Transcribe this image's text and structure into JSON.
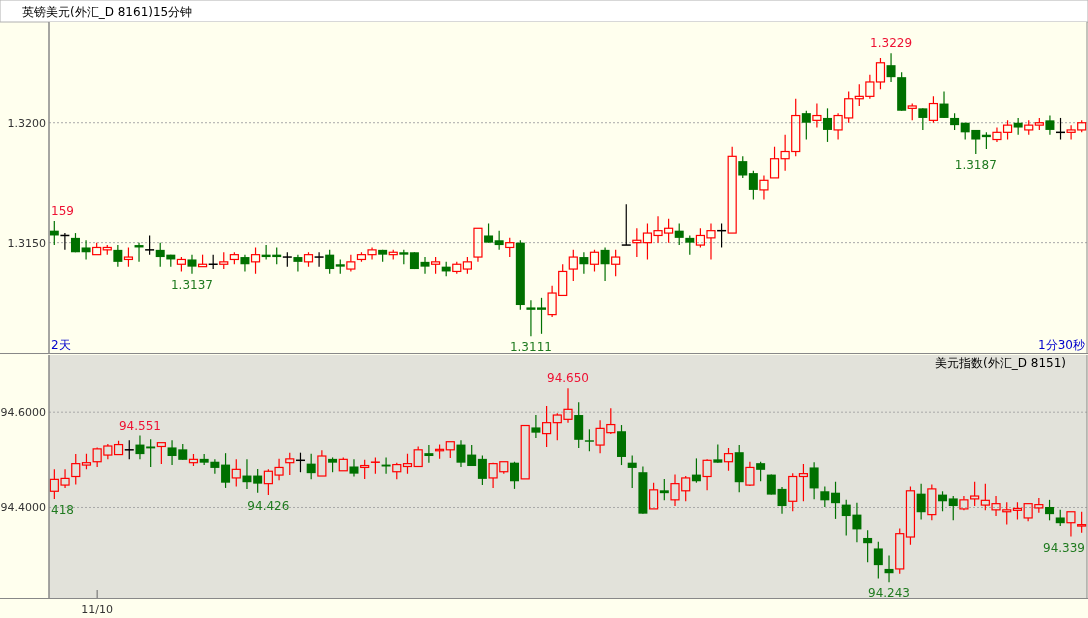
{
  "chart_data": [
    {
      "type": "candlestick",
      "title": "英镑美元(外汇_D 8161)15分钟",
      "categories": [
        null,
        null,
        null,
        null,
        null,
        null,
        null,
        null,
        null,
        null,
        null,
        null,
        null,
        null,
        null,
        null,
        null,
        null,
        null,
        null,
        null,
        null,
        null,
        null,
        null,
        null,
        null,
        null,
        null,
        null,
        null,
        null,
        null,
        null,
        null,
        null,
        null,
        null,
        null,
        null,
        null,
        null,
        null,
        null,
        null,
        null,
        null,
        null,
        null,
        null,
        null,
        null,
        null,
        null,
        null,
        null,
        null,
        null,
        null,
        null,
        null,
        null,
        null,
        null,
        null,
        null,
        null,
        null,
        null,
        null,
        null,
        null,
        null,
        null,
        null,
        null,
        null,
        null,
        null,
        null,
        null,
        null,
        null,
        null,
        null,
        null,
        null,
        null,
        null,
        null,
        null,
        null,
        null,
        null,
        null,
        null,
        null,
        null
      ],
      "ohlc": [
        [
          1.3155,
          1.3159,
          1.3149,
          1.3153
        ],
        [
          1.3153,
          1.3154,
          1.3147,
          1.3153
        ],
        [
          1.3152,
          1.3154,
          1.3146,
          1.3146
        ],
        [
          1.3148,
          1.3151,
          1.3143,
          1.3146
        ],
        [
          1.3145,
          1.315,
          1.3145,
          1.3148
        ],
        [
          1.3147,
          1.3149,
          1.3145,
          1.3148
        ],
        [
          1.3147,
          1.3149,
          1.314,
          1.3142
        ],
        [
          1.3143,
          1.3148,
          1.314,
          1.3144
        ],
        [
          1.3149,
          1.315,
          1.3142,
          1.3148
        ],
        [
          1.3147,
          1.3153,
          1.3145,
          1.3147
        ],
        [
          1.3147,
          1.315,
          1.314,
          1.3144
        ],
        [
          1.3145,
          1.3145,
          1.314,
          1.3143
        ],
        [
          1.3141,
          1.3144,
          1.3138,
          1.3143
        ],
        [
          1.3143,
          1.3145,
          1.3137,
          1.314
        ],
        [
          1.314,
          1.3145,
          1.314,
          1.3141
        ],
        [
          1.3141,
          1.3145,
          1.3139,
          1.3141
        ],
        [
          1.3141,
          1.3146,
          1.3139,
          1.3142
        ],
        [
          1.3143,
          1.3146,
          1.3141,
          1.3145
        ],
        [
          1.3144,
          1.3145,
          1.3138,
          1.3141
        ],
        [
          1.3142,
          1.3148,
          1.3137,
          1.3145
        ],
        [
          1.3145,
          1.3149,
          1.3143,
          1.3144
        ],
        [
          1.3145,
          1.3148,
          1.3141,
          1.3144
        ],
        [
          1.3144,
          1.3146,
          1.314,
          1.3144
        ],
        [
          1.3144,
          1.3145,
          1.3138,
          1.3142
        ],
        [
          1.3142,
          1.3146,
          1.314,
          1.3145
        ],
        [
          1.3144,
          1.3146,
          1.314,
          1.3144
        ],
        [
          1.3145,
          1.3147,
          1.3137,
          1.3139
        ],
        [
          1.3141,
          1.3143,
          1.3137,
          1.314
        ],
        [
          1.3139,
          1.3145,
          1.3138,
          1.3142
        ],
        [
          1.3143,
          1.3146,
          1.3142,
          1.3145
        ],
        [
          1.3145,
          1.3148,
          1.3143,
          1.3147
        ],
        [
          1.3147,
          1.3147,
          1.3142,
          1.3145
        ],
        [
          1.3145,
          1.3147,
          1.3143,
          1.3146
        ],
        [
          1.3146,
          1.3147,
          1.3141,
          1.3145
        ],
        [
          1.3146,
          1.3146,
          1.3139,
          1.3139
        ],
        [
          1.3142,
          1.3144,
          1.3137,
          1.314
        ],
        [
          1.3141,
          1.3144,
          1.3137,
          1.3142
        ],
        [
          1.314,
          1.3142,
          1.3136,
          1.3138
        ],
        [
          1.3138,
          1.3142,
          1.3137,
          1.3141
        ],
        [
          1.3139,
          1.3144,
          1.3137,
          1.3142
        ],
        [
          1.3144,
          1.3156,
          1.3142,
          1.3156
        ],
        [
          1.3153,
          1.3158,
          1.315,
          1.315
        ],
        [
          1.3151,
          1.3155,
          1.3147,
          1.3149
        ],
        [
          1.3148,
          1.3152,
          1.3144,
          1.315
        ],
        [
          1.315,
          1.3151,
          1.3122,
          1.3124
        ],
        [
          1.3123,
          1.3126,
          1.3111,
          1.3122
        ],
        [
          1.3123,
          1.3127,
          1.3112,
          1.3122
        ],
        [
          1.312,
          1.3132,
          1.3119,
          1.3129
        ],
        [
          1.3128,
          1.3141,
          1.3128,
          1.3138
        ],
        [
          1.3139,
          1.3147,
          1.3134,
          1.3144
        ],
        [
          1.3144,
          1.3146,
          1.3137,
          1.3141
        ],
        [
          1.3141,
          1.3147,
          1.3138,
          1.3146
        ],
        [
          1.3147,
          1.3148,
          1.3134,
          1.3141
        ],
        [
          1.3141,
          1.3147,
          1.3136,
          1.3144
        ],
        [
          1.3149,
          1.3166,
          1.3149,
          1.3149
        ],
        [
          1.315,
          1.3156,
          1.3144,
          1.3151
        ],
        [
          1.315,
          1.3158,
          1.3143,
          1.3154
        ],
        [
          1.3153,
          1.3161,
          1.315,
          1.3155
        ],
        [
          1.3154,
          1.316,
          1.315,
          1.3156
        ],
        [
          1.3155,
          1.3158,
          1.3149,
          1.3152
        ],
        [
          1.3152,
          1.3153,
          1.3145,
          1.315
        ],
        [
          1.3149,
          1.3156,
          1.3148,
          1.3153
        ],
        [
          1.3152,
          1.3158,
          1.3143,
          1.3155
        ],
        [
          1.3155,
          1.3158,
          1.3148,
          1.3155
        ],
        [
          1.3154,
          1.319,
          1.3154,
          1.3186
        ],
        [
          1.3184,
          1.3186,
          1.3177,
          1.3178
        ],
        [
          1.3179,
          1.318,
          1.3168,
          1.3172
        ],
        [
          1.3172,
          1.3178,
          1.3168,
          1.3176
        ],
        [
          1.3177,
          1.319,
          1.3177,
          1.3185
        ],
        [
          1.3185,
          1.3195,
          1.318,
          1.3188
        ],
        [
          1.3188,
          1.321,
          1.3186,
          1.3203
        ],
        [
          1.3204,
          1.3205,
          1.3193,
          1.32
        ],
        [
          1.3201,
          1.3208,
          1.3198,
          1.3203
        ],
        [
          1.3202,
          1.3206,
          1.3192,
          1.3197
        ],
        [
          1.3197,
          1.3204,
          1.3193,
          1.3203
        ],
        [
          1.3202,
          1.3213,
          1.32,
          1.321
        ],
        [
          1.321,
          1.3216,
          1.3207,
          1.3211
        ],
        [
          1.3211,
          1.322,
          1.321,
          1.3217
        ],
        [
          1.3217,
          1.3227,
          1.3214,
          1.3225
        ],
        [
          1.3224,
          1.3229,
          1.3217,
          1.3219
        ],
        [
          1.3219,
          1.3221,
          1.3205,
          1.3205
        ],
        [
          1.3206,
          1.3208,
          1.3201,
          1.3207
        ],
        [
          1.3206,
          1.3206,
          1.3197,
          1.3202
        ],
        [
          1.3201,
          1.3211,
          1.32,
          1.3208
        ],
        [
          1.3208,
          1.3213,
          1.3202,
          1.3202
        ],
        [
          1.3202,
          1.3204,
          1.3197,
          1.3199
        ],
        [
          1.32,
          1.32,
          1.3193,
          1.3196
        ],
        [
          1.3197,
          1.3197,
          1.3187,
          1.3193
        ],
        [
          1.3195,
          1.3196,
          1.3189,
          1.3194
        ],
        [
          1.3193,
          1.3198,
          1.3192,
          1.3196
        ],
        [
          1.3196,
          1.3201,
          1.3193,
          1.3199
        ],
        [
          1.32,
          1.3202,
          1.3195,
          1.3198
        ],
        [
          1.3197,
          1.3201,
          1.3195,
          1.3199
        ],
        [
          1.3199,
          1.3202,
          1.3197,
          1.32
        ],
        [
          1.3201,
          1.3203,
          1.3195,
          1.3197
        ],
        [
          1.3196,
          1.3202,
          1.3193,
          1.3196
        ],
        [
          1.3196,
          1.3199,
          1.3193,
          1.3197
        ],
        [
          1.3197,
          1.3201,
          1.3196,
          1.32
        ]
      ],
      "colors": [
        "#007000",
        "#000000",
        "#007000",
        "#007000",
        "#ff0000",
        "#ff0000",
        "#007000",
        "#ff0000",
        "#007000",
        "#000000",
        "#007000",
        "#007000",
        "#ff0000",
        "#007000",
        "#ff0000",
        "#000000",
        "#ff0000",
        "#ff0000",
        "#007000",
        "#ff0000",
        "#007000",
        "#007000",
        "#000000",
        "#007000",
        "#ff0000",
        "#000000",
        "#007000",
        "#007000",
        "#ff0000",
        "#ff0000",
        "#ff0000",
        "#007000",
        "#ff0000",
        "#007000",
        "#007000",
        "#007000",
        "#ff0000",
        "#007000",
        "#ff0000",
        "#ff0000",
        "#ff0000",
        "#007000",
        "#007000",
        "#ff0000",
        "#007000",
        "#007000",
        "#007000",
        "#ff0000",
        "#ff0000",
        "#ff0000",
        "#007000",
        "#ff0000",
        "#007000",
        "#ff0000",
        "#000000",
        "#ff0000",
        "#ff0000",
        "#ff0000",
        "#ff0000",
        "#007000",
        "#007000",
        "#ff0000",
        "#ff0000",
        "#000000",
        "#ff0000",
        "#007000",
        "#007000",
        "#ff0000",
        "#ff0000",
        "#ff0000",
        "#ff0000",
        "#007000",
        "#ff0000",
        "#007000",
        "#ff0000",
        "#ff0000",
        "#ff0000",
        "#ff0000",
        "#ff0000",
        "#007000",
        "#007000",
        "#ff0000",
        "#007000",
        "#ff0000",
        "#007000",
        "#007000",
        "#007000",
        "#007000",
        "#007000",
        "#ff0000",
        "#ff0000",
        "#007000",
        "#ff0000",
        "#ff0000",
        "#007000",
        "#000000",
        "#ff0000",
        "#ff0000"
      ],
      "ylim": [
        1.3104,
        1.3242
      ],
      "yticks": [
        {
          "value": 1.315,
          "label": "1.3150"
        },
        {
          "value": 1.32,
          "label": "1.3200"
        }
      ],
      "grid": "y",
      "tick_labels": "y",
      "annotations": [
        "159",
        "1.3137",
        "1.3111",
        "1.3229",
        "1.3187",
        "2天",
        "1分30秒"
      ]
    },
    {
      "type": "candlestick",
      "title": "美元指数(外汇_D 8151)",
      "categories": [
        null,
        null,
        null,
        null,
        "11/10",
        null,
        null,
        null,
        null,
        null,
        null,
        null,
        null,
        null,
        null,
        null,
        null,
        null,
        null,
        null,
        null,
        null,
        null,
        null,
        null,
        null,
        null,
        null,
        null,
        null,
        null,
        null,
        null,
        null,
        null,
        null,
        null,
        null,
        null,
        null,
        null,
        null,
        null,
        null,
        null,
        null,
        null,
        null,
        null,
        null,
        null,
        null,
        null,
        null,
        null,
        null,
        null,
        null,
        null,
        null,
        null,
        null,
        null,
        null,
        null,
        null,
        null,
        null,
        null,
        null,
        null,
        null,
        null,
        null,
        null,
        null,
        null,
        null,
        null,
        null,
        null,
        null,
        null,
        null,
        null,
        null,
        null,
        null,
        null,
        null,
        null,
        null,
        null,
        null,
        null,
        null,
        null
      ],
      "ohlc": [
        [
          94.434,
          94.48,
          94.418,
          94.459
        ],
        [
          94.447,
          94.48,
          94.441,
          94.461
        ],
        [
          94.465,
          94.512,
          94.448,
          94.492
        ],
        [
          94.489,
          94.513,
          94.48,
          94.494
        ],
        [
          94.496,
          94.526,
          94.485,
          94.523
        ],
        [
          94.51,
          94.533,
          94.501,
          94.529
        ],
        [
          94.511,
          94.54,
          94.511,
          94.532
        ],
        [
          94.521,
          94.541,
          94.501,
          94.521
        ],
        [
          94.532,
          94.551,
          94.501,
          94.512
        ],
        [
          94.528,
          94.543,
          94.485,
          94.524
        ],
        [
          94.528,
          94.536,
          94.491,
          94.536
        ],
        [
          94.526,
          94.541,
          94.489,
          94.508
        ],
        [
          94.522,
          94.533,
          94.5,
          94.5
        ],
        [
          94.494,
          94.512,
          94.487,
          94.501
        ],
        [
          94.502,
          94.512,
          94.489,
          94.494
        ],
        [
          94.496,
          94.501,
          94.471,
          94.483
        ],
        [
          94.49,
          94.514,
          94.441,
          94.452
        ],
        [
          94.462,
          94.501,
          94.444,
          94.48
        ],
        [
          94.467,
          94.501,
          94.439,
          94.453
        ],
        [
          94.467,
          94.481,
          94.431,
          94.45
        ],
        [
          94.45,
          94.48,
          94.426,
          94.476
        ],
        [
          94.468,
          94.502,
          94.457,
          94.484
        ],
        [
          94.494,
          94.515,
          94.468,
          94.502
        ],
        [
          94.499,
          94.515,
          94.474,
          94.499
        ],
        [
          94.492,
          94.513,
          94.459,
          94.472
        ],
        [
          94.466,
          94.52,
          94.466,
          94.508
        ],
        [
          94.502,
          94.505,
          94.474,
          94.494
        ],
        [
          94.477,
          94.505,
          94.477,
          94.501
        ],
        [
          94.486,
          94.501,
          94.465,
          94.471
        ],
        [
          94.484,
          94.5,
          94.46,
          94.488
        ],
        [
          94.494,
          94.505,
          94.471,
          94.496
        ],
        [
          94.49,
          94.505,
          94.471,
          94.486
        ],
        [
          94.475,
          94.494,
          94.459,
          94.49
        ],
        [
          94.486,
          94.513,
          94.471,
          94.492
        ],
        [
          94.486,
          94.528,
          94.486,
          94.521
        ],
        [
          94.514,
          94.531,
          94.494,
          94.508
        ],
        [
          94.519,
          94.532,
          94.502,
          94.522
        ],
        [
          94.521,
          94.538,
          94.504,
          94.538
        ],
        [
          94.532,
          94.541,
          94.485,
          94.494
        ],
        [
          94.511,
          94.531,
          94.487,
          94.487
        ],
        [
          94.502,
          94.509,
          94.447,
          94.46
        ],
        [
          94.462,
          94.494,
          94.441,
          94.492
        ],
        [
          94.475,
          94.496,
          94.471,
          94.496
        ],
        [
          94.494,
          94.496,
          94.439,
          94.455
        ],
        [
          94.46,
          94.572,
          94.46,
          94.572
        ],
        [
          94.568,
          94.594,
          94.546,
          94.557
        ],
        [
          94.555,
          94.613,
          94.527,
          94.578
        ],
        [
          94.578,
          94.598,
          94.541,
          94.594
        ],
        [
          94.585,
          94.65,
          94.578,
          94.606
        ],
        [
          94.594,
          94.621,
          94.525,
          94.542
        ],
        [
          94.541,
          94.564,
          94.518,
          94.538
        ],
        [
          94.531,
          94.583,
          94.514,
          94.566
        ],
        [
          94.557,
          94.608,
          94.554,
          94.574
        ],
        [
          94.56,
          94.573,
          94.489,
          94.506
        ],
        [
          94.494,
          94.509,
          94.441,
          94.483
        ],
        [
          94.474,
          94.486,
          94.387,
          94.387
        ],
        [
          94.397,
          94.452,
          94.397,
          94.437
        ],
        [
          94.436,
          94.46,
          94.415,
          94.43
        ],
        [
          94.416,
          94.469,
          94.403,
          94.45
        ],
        [
          94.435,
          94.466,
          94.413,
          94.462
        ],
        [
          94.469,
          94.503,
          94.452,
          94.455
        ],
        [
          94.465,
          94.501,
          94.436,
          94.499
        ],
        [
          94.501,
          94.532,
          94.494,
          94.494
        ],
        [
          94.496,
          94.525,
          94.477,
          94.513
        ],
        [
          94.516,
          94.531,
          94.432,
          94.453
        ],
        [
          94.447,
          94.496,
          94.445,
          94.484
        ],
        [
          94.493,
          94.496,
          94.455,
          94.479
        ],
        [
          94.469,
          94.469,
          94.427,
          94.427
        ],
        [
          94.439,
          94.443,
          94.387,
          94.403
        ],
        [
          94.413,
          94.472,
          94.392,
          94.465
        ],
        [
          94.465,
          94.491,
          94.413,
          94.471
        ],
        [
          94.484,
          94.495,
          94.417,
          94.44
        ],
        [
          94.434,
          94.444,
          94.401,
          94.415
        ],
        [
          94.431,
          94.454,
          94.376,
          94.409
        ],
        [
          94.406,
          94.416,
          94.341,
          94.382
        ],
        [
          94.385,
          94.41,
          94.327,
          94.354
        ],
        [
          94.336,
          94.352,
          94.285,
          94.325
        ],
        [
          94.314,
          94.328,
          94.251,
          94.279
        ],
        [
          94.271,
          94.299,
          94.243,
          94.262
        ],
        [
          94.271,
          94.356,
          94.261,
          94.345
        ],
        [
          94.338,
          94.444,
          94.322,
          94.435
        ],
        [
          94.429,
          94.45,
          94.375,
          94.39
        ],
        [
          94.385,
          94.448,
          94.373,
          94.439
        ],
        [
          94.427,
          94.434,
          94.392,
          94.413
        ],
        [
          94.419,
          94.424,
          94.373,
          94.403
        ],
        [
          94.397,
          94.424,
          94.394,
          94.416
        ],
        [
          94.418,
          94.454,
          94.403,
          94.424
        ],
        [
          94.405,
          94.45,
          94.394,
          94.415
        ],
        [
          94.395,
          94.424,
          94.382,
          94.408
        ],
        [
          94.391,
          94.411,
          94.364,
          94.395
        ],
        [
          94.394,
          94.411,
          94.375,
          94.398
        ],
        [
          94.378,
          94.408,
          94.371,
          94.408
        ],
        [
          94.399,
          94.42,
          94.389,
          94.406
        ],
        [
          94.401,
          94.416,
          94.373,
          94.386
        ],
        [
          94.379,
          94.395,
          94.361,
          94.367
        ],
        [
          94.368,
          94.391,
          94.339,
          94.391
        ],
        [
          94.361,
          94.391,
          94.347,
          94.364
        ]
      ],
      "colors": [
        "#ff0000",
        "#ff0000",
        "#ff0000",
        "#ff0000",
        "#ff0000",
        "#ff0000",
        "#ff0000",
        "#000000",
        "#007000",
        "#007000",
        "#ff0000",
        "#007000",
        "#007000",
        "#ff0000",
        "#007000",
        "#007000",
        "#007000",
        "#ff0000",
        "#007000",
        "#007000",
        "#ff0000",
        "#ff0000",
        "#ff0000",
        "#000000",
        "#007000",
        "#ff0000",
        "#007000",
        "#ff0000",
        "#007000",
        "#ff0000",
        "#ff0000",
        "#007000",
        "#ff0000",
        "#ff0000",
        "#ff0000",
        "#007000",
        "#ff0000",
        "#ff0000",
        "#007000",
        "#007000",
        "#007000",
        "#ff0000",
        "#ff0000",
        "#007000",
        "#ff0000",
        "#007000",
        "#ff0000",
        "#ff0000",
        "#ff0000",
        "#007000",
        "#007000",
        "#ff0000",
        "#ff0000",
        "#007000",
        "#007000",
        "#007000",
        "#ff0000",
        "#007000",
        "#ff0000",
        "#ff0000",
        "#007000",
        "#ff0000",
        "#007000",
        "#ff0000",
        "#007000",
        "#ff0000",
        "#007000",
        "#007000",
        "#007000",
        "#ff0000",
        "#ff0000",
        "#007000",
        "#007000",
        "#007000",
        "#007000",
        "#007000",
        "#007000",
        "#007000",
        "#007000",
        "#ff0000",
        "#ff0000",
        "#007000",
        "#ff0000",
        "#007000",
        "#007000",
        "#ff0000",
        "#ff0000",
        "#ff0000",
        "#ff0000",
        "#ff0000",
        "#ff0000",
        "#ff0000",
        "#ff0000",
        "#007000",
        "#007000",
        "#ff0000",
        "#ff0000"
      ],
      "ylim": [
        94.21,
        94.72
      ],
      "yticks": [
        {
          "value": 94.4,
          "label": "94.4000"
        },
        {
          "value": 94.6,
          "label": "94.6000"
        }
      ],
      "grid": "y",
      "annotations": [
        "418",
        "94.551",
        "94.426",
        "94.650",
        "94.243",
        "94.339"
      ]
    }
  ]
}
